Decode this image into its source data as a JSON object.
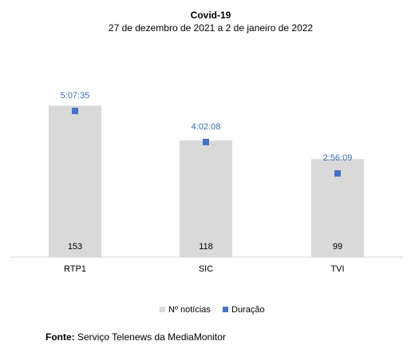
{
  "chart_data": {
    "type": "bar",
    "title": "Covid-19",
    "subtitle": "27 de dezembro de 2021 a 2 de janeiro de 2022",
    "categories": [
      "RTP1",
      "SIC",
      "TVI"
    ],
    "series": [
      {
        "name": "Nº notícias",
        "type": "bar",
        "values": [
          153,
          118,
          99
        ],
        "color": "#d9d9d9"
      },
      {
        "name": "Duração",
        "type": "scatter",
        "values": [
          "5:07:35",
          "4:02:08",
          "2:56:09"
        ],
        "values_seconds": [
          18455,
          14528,
          10569
        ],
        "color": "#4472c4"
      }
    ],
    "bar_ylim": [
      0,
      200
    ],
    "duration_ylim_seconds": [
      0,
      25000
    ],
    "legend_position": "bottom"
  },
  "footer": {
    "source_label": "Fonte:",
    "source_text": "Serviço Telenews da MediaMonitor"
  }
}
